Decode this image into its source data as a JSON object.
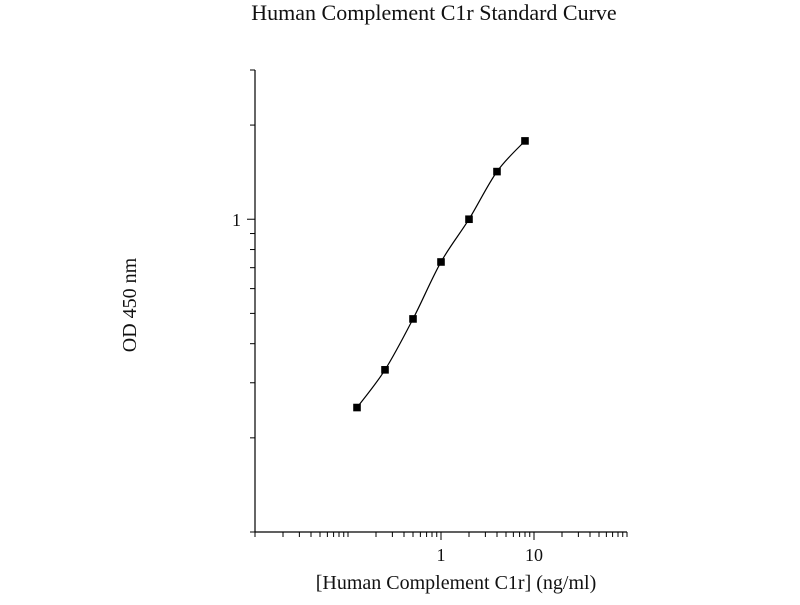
{
  "chart_data": {
    "type": "scatter",
    "title": "Human Complement C1r Standard Curve",
    "xlabel": "[Human Complement C1r] (ng/ml)",
    "ylabel": "OD 450 nm",
    "x_scale": "log",
    "y_scale": "log",
    "xlim": [
      0.01,
      100
    ],
    "ylim": [
      0.1,
      3
    ],
    "x_ticks": [
      1,
      10
    ],
    "x_tick_labels": [
      "1",
      "10"
    ],
    "y_ticks": [
      1
    ],
    "y_tick_labels": [
      "1"
    ],
    "grid": false,
    "legend": "none",
    "fit_line": "smooth curve through points",
    "series": [
      {
        "x": [
          0.125,
          0.25,
          0.5,
          1,
          2,
          4,
          8
        ],
        "y": [
          0.25,
          0.33,
          0.48,
          0.73,
          1.0,
          1.42,
          1.78
        ]
      }
    ],
    "colors": {
      "marker": "#000000",
      "line": "#000000",
      "axis": "#000000"
    }
  }
}
